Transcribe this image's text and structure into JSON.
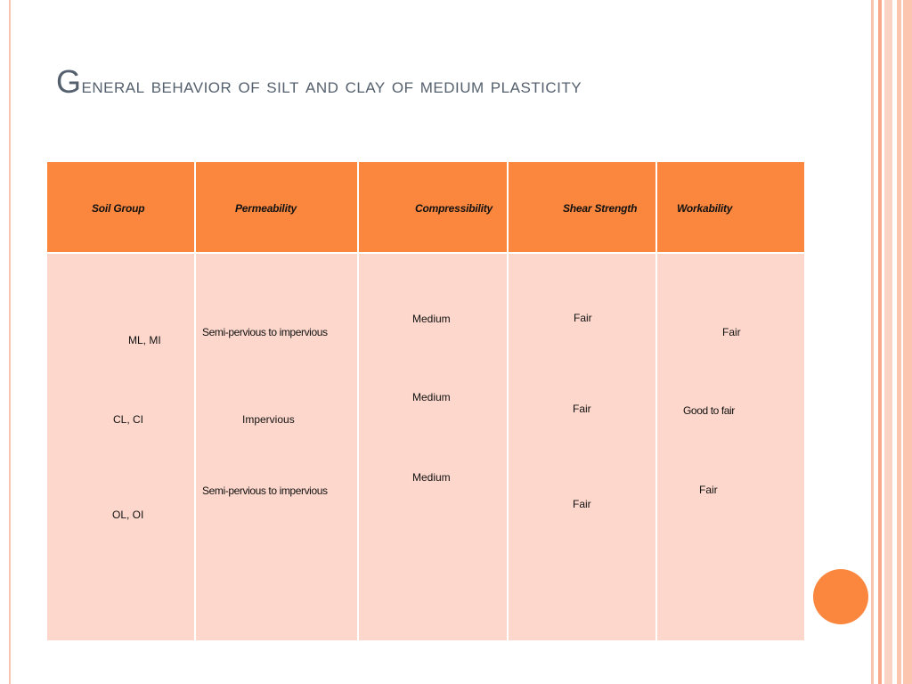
{
  "slide": {
    "title_first_letter": "G",
    "title_rest": "eneral behavior of silt and clay of medium plasticity"
  },
  "table": {
    "headers": [
      "Soil Group",
      "Permeability",
      "Compressibility",
      "Shear Strength",
      "Workability"
    ],
    "rows": [
      [
        "ML, MI",
        "Semi-pervious to impervious",
        "Medium",
        "Fair",
        "Fair"
      ],
      [
        "CL, CI",
        "Impervious",
        "Medium",
        "Fair",
        "Good to fair"
      ],
      [
        "OL, OI",
        "Semi-pervious to impervious",
        "Medium",
        "Fair",
        "Fair"
      ]
    ]
  },
  "colors": {
    "accent": "#fb873f",
    "table_body": "#fdd7cb",
    "title": "#55606e"
  }
}
